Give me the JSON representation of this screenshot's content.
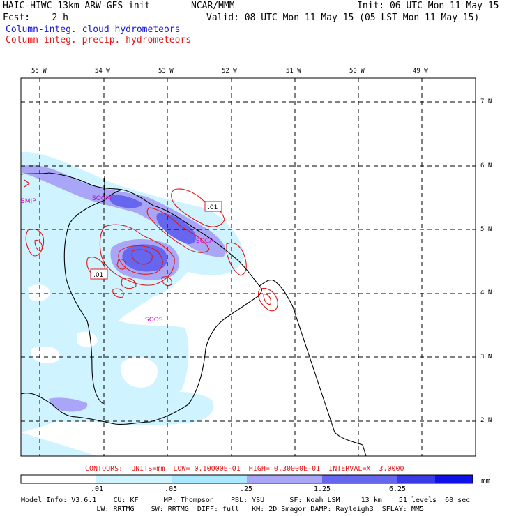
{
  "header": {
    "title_left": "HAIC-HIWC 13km ARW-GFS init",
    "center_label": "NCAR/MMM",
    "init": "Init: 06 UTC Mon 11 May 15",
    "fcst": "Fcst:    2 h",
    "valid": "Valid: 08 UTC Mon 11 May 15 (05 LST Mon 11 May 15)",
    "field_cloud": "Column-integ. cloud hydrometeors",
    "field_precip": "Column-integ. precip. hydrometeors"
  },
  "map": {
    "lon_labels": [
      "55 W",
      "54 W",
      "53 W",
      "52 W",
      "51 W",
      "50 W",
      "49 W"
    ],
    "lat_labels": [
      "7 N",
      "6 N",
      "5 N",
      "4 N",
      "3 N",
      "2 N"
    ],
    "stations": [
      "SMJP",
      "SOGM",
      "SOCA",
      "SOOS"
    ],
    "contour_labels": [
      ".01",
      ".01"
    ],
    "colors": {
      "cloud_light": "#cff4ff",
      "cloud_mid": "#a9a6f7",
      "cloud_strong": "#6666ee",
      "contour": "#e01818",
      "station": "#cc00cc"
    }
  },
  "contours_note": "CONTOURS:  UNITS=mm  LOW= 0.10000E-01  HIGH= 0.30000E-01  INTERVAL=X  3.0000",
  "colorbar": {
    "ticks": [
      ".01",
      ".05",
      ".25",
      "1.25",
      "6.25"
    ],
    "units": "mm",
    "colors": [
      "#ffffff",
      "#cff4ff",
      "#a9e8ff",
      "#a9a6f7",
      "#6666ee",
      "#3a3ae6",
      "#1010e8"
    ]
  },
  "model_info": {
    "line1": "Model Info: V3.6.1    CU: KF      MP: Thompson    PBL: YSU      SF: Noah LSM     13 km    51 levels  60 sec",
    "line2": "                  LW: RRTMG    SW: RRTMG  DIFF: full   KM: 2D Smagor DAMP: Rayleigh3  SFLAY: MM5"
  }
}
